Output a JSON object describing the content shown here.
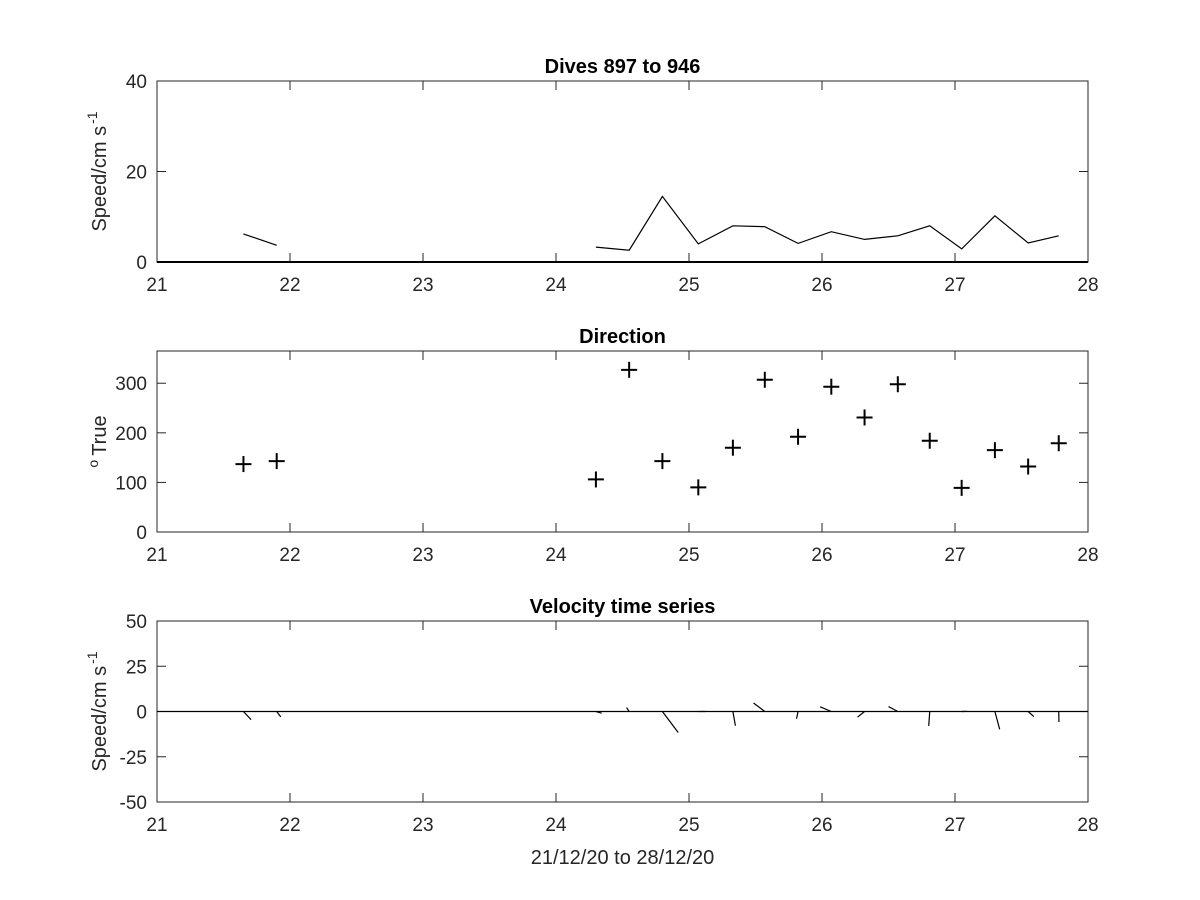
{
  "colors": {
    "background": "#ffffff",
    "axes": "#262626",
    "data": "#000000"
  },
  "chart_data": [
    {
      "type": "line",
      "title": "Dives 897 to 946",
      "xlabel": "",
      "ylabel": "Speed/cm s",
      "ylabel_superscript": "-1",
      "xlim": [
        21,
        28
      ],
      "ylim": [
        0,
        40
      ],
      "xticks": [
        21,
        22,
        23,
        24,
        25,
        26,
        27,
        28
      ],
      "yticks": [
        0,
        20,
        40
      ],
      "grid": false,
      "baseline": 0,
      "series": [
        {
          "x": [
            21.65,
            21.9
          ],
          "y": [
            6.2,
            3.7
          ]
        },
        {
          "x": [
            24.3,
            24.55,
            24.8,
            25.07,
            25.33,
            25.57,
            25.82,
            26.07,
            26.32,
            26.57,
            26.81,
            27.05,
            27.3,
            27.55,
            27.78
          ],
          "y": [
            3.3,
            2.6,
            14.5,
            4.0,
            8.0,
            7.8,
            4.1,
            6.7,
            5.0,
            5.8,
            8.0,
            2.9,
            10.2,
            4.2,
            5.8
          ]
        }
      ]
    },
    {
      "type": "scatter",
      "title": "Direction",
      "xlabel": "",
      "ylabel": "True",
      "ylabel_superscript": "o",
      "xlim": [
        21,
        28
      ],
      "ylim": [
        0,
        365
      ],
      "xticks": [
        21,
        22,
        23,
        24,
        25,
        26,
        27,
        28
      ],
      "yticks": [
        0,
        100,
        200,
        300
      ],
      "grid": false,
      "marker": "+",
      "points": {
        "x": [
          21.65,
          21.9,
          24.3,
          24.55,
          24.8,
          25.07,
          25.33,
          25.57,
          25.82,
          26.07,
          26.32,
          26.57,
          26.81,
          27.05,
          27.3,
          27.55,
          27.78
        ],
        "y": [
          137,
          143,
          106,
          327,
          143,
          90,
          170,
          307,
          192,
          293,
          231,
          298,
          184,
          89,
          165,
          132,
          179
        ]
      }
    },
    {
      "type": "line",
      "title": "Velocity time series",
      "xlabel": "21/12/20 to 28/12/20",
      "ylabel": "Speed/cm s",
      "ylabel_superscript": "-1",
      "xlim": [
        21,
        28
      ],
      "ylim": [
        -50,
        50
      ],
      "xticks": [
        21,
        22,
        23,
        24,
        25,
        26,
        27,
        28
      ],
      "yticks": [
        -50,
        -25,
        0,
        25,
        50
      ],
      "grid": false,
      "baseline": 0,
      "vectors": [
        {
          "x": 21.65,
          "speed": 6.2,
          "direction": 137
        },
        {
          "x": 21.9,
          "speed": 3.7,
          "direction": 143
        },
        {
          "x": 24.3,
          "speed": 3.3,
          "direction": 106
        },
        {
          "x": 24.55,
          "speed": 2.6,
          "direction": 327
        },
        {
          "x": 24.8,
          "speed": 14.5,
          "direction": 143
        },
        {
          "x": 25.07,
          "speed": 4.0,
          "direction": 90
        },
        {
          "x": 25.33,
          "speed": 8.0,
          "direction": 170
        },
        {
          "x": 25.57,
          "speed": 7.8,
          "direction": 307
        },
        {
          "x": 25.82,
          "speed": 4.1,
          "direction": 192
        },
        {
          "x": 26.07,
          "speed": 6.7,
          "direction": 293
        },
        {
          "x": 26.32,
          "speed": 5.0,
          "direction": 231
        },
        {
          "x": 26.57,
          "speed": 5.8,
          "direction": 298
        },
        {
          "x": 26.81,
          "speed": 8.0,
          "direction": 184
        },
        {
          "x": 27.05,
          "speed": 2.9,
          "direction": 89
        },
        {
          "x": 27.3,
          "speed": 10.2,
          "direction": 165
        },
        {
          "x": 27.55,
          "speed": 4.2,
          "direction": 132
        },
        {
          "x": 27.78,
          "speed": 5.8,
          "direction": 179
        }
      ]
    }
  ]
}
